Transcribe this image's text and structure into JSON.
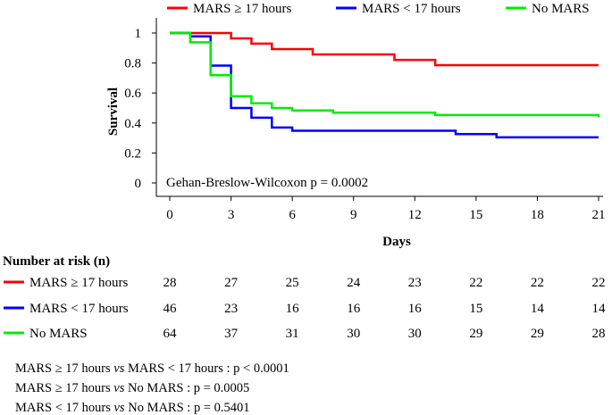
{
  "chart_data": {
    "type": "line",
    "step": true,
    "xlabel": "Days",
    "ylabel": "Survival",
    "xlim": [
      0,
      21
    ],
    "ylim": [
      0,
      1
    ],
    "x_ticks": [
      0,
      3,
      6,
      9,
      12,
      15,
      18,
      21
    ],
    "y_ticks": [
      0,
      0.2,
      0.4,
      0.6,
      0.8,
      1
    ],
    "y_tick_labels": [
      "0",
      "0.2",
      "0.4",
      "0.6",
      "0.8",
      "1"
    ],
    "legend_position": "top",
    "annotation": "Gehan-Breslow-Wilcoxon p = 0.0002",
    "series": [
      {
        "name": "MARS ≥ 17 hours",
        "color": "#ff0000",
        "points": [
          [
            0,
            1
          ],
          [
            3,
            0.964
          ],
          [
            4,
            0.929
          ],
          [
            5,
            0.893
          ],
          [
            7,
            0.857
          ],
          [
            11,
            0.821
          ],
          [
            13,
            0.786
          ],
          [
            21,
            0.786
          ]
        ]
      },
      {
        "name": "MARS < 17 hours",
        "color": "#0000ff",
        "points": [
          [
            0,
            1
          ],
          [
            1,
            0.978
          ],
          [
            2,
            0.783
          ],
          [
            3,
            0.5
          ],
          [
            4,
            0.435
          ],
          [
            5,
            0.37
          ],
          [
            6,
            0.348
          ],
          [
            14,
            0.326
          ],
          [
            16,
            0.304
          ],
          [
            21,
            0.304
          ]
        ]
      },
      {
        "name": "No MARS",
        "color": "#00ee00",
        "points": [
          [
            0,
            1
          ],
          [
            1,
            0.938
          ],
          [
            2,
            0.719
          ],
          [
            3,
            0.578
          ],
          [
            4,
            0.531
          ],
          [
            5,
            0.5
          ],
          [
            6,
            0.484
          ],
          [
            8,
            0.469
          ],
          [
            13,
            0.453
          ],
          [
            21,
            0.438
          ]
        ]
      }
    ]
  },
  "risk_table": {
    "title": "Number at risk (n)",
    "rows": [
      {
        "label": "MARS ≥ 17 hours",
        "color": "#ff0000",
        "values": [
          "28",
          "27",
          "25",
          "24",
          "23",
          "22",
          "22",
          "22"
        ]
      },
      {
        "label": "MARS < 17 hours",
        "color": "#0000ff",
        "values": [
          "46",
          "23",
          "16",
          "16",
          "16",
          "15",
          "14",
          "14"
        ]
      },
      {
        "label": "No MARS",
        "color": "#00ee00",
        "values": [
          "64",
          "37",
          "31",
          "30",
          "30",
          "29",
          "29",
          "28"
        ]
      }
    ]
  },
  "comparisons": [
    {
      "a": "MARS ≥ 17 hours ",
      "vs": "vs",
      "b": " MARS < 17 hours : p < 0.0001"
    },
    {
      "a": "MARS ≥ 17 hours ",
      "vs": "vs",
      "b": " No MARS : p = 0.0005"
    },
    {
      "a": "MARS < 17 hours ",
      "vs": "vs",
      "b": " No MARS : p = 0.5401"
    }
  ]
}
